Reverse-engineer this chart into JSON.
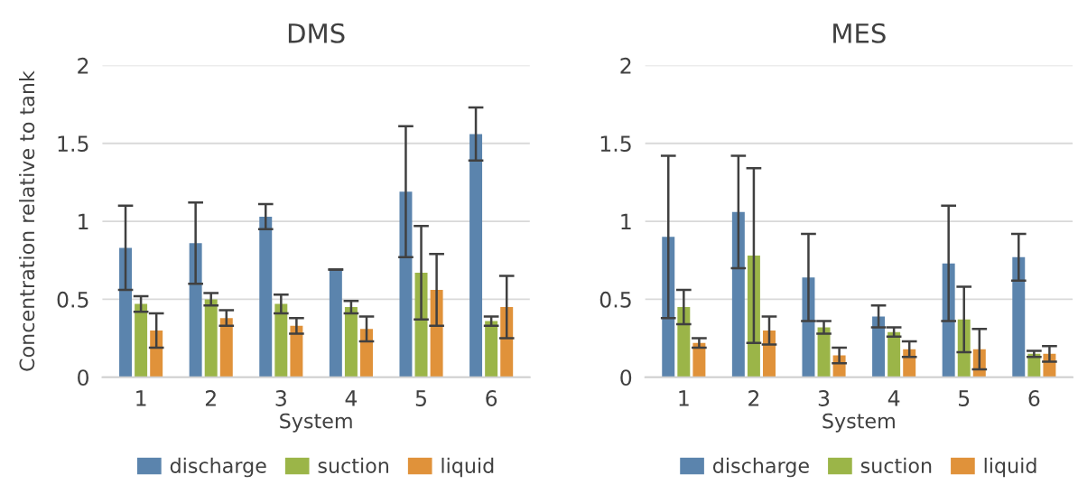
{
  "chart_data": [
    {
      "type": "bar",
      "title": "DMS",
      "xlabel": "System",
      "ylabel": "Concentration relative to tank",
      "categories": [
        "1",
        "2",
        "3",
        "4",
        "5",
        "6"
      ],
      "ylim": [
        0,
        2
      ],
      "yticks": [
        0,
        0.5,
        1,
        1.5,
        2
      ],
      "grid": "y",
      "legend": "bottom",
      "series": [
        {
          "name": "discharge",
          "color": "#5b84ad",
          "values": [
            0.83,
            0.86,
            1.03,
            0.69,
            1.19,
            1.56
          ],
          "errors": [
            0.27,
            0.26,
            0.08,
            0,
            0.42,
            0.17
          ]
        },
        {
          "name": "suction",
          "color": "#9bb548",
          "values": [
            0.47,
            0.5,
            0.47,
            0.45,
            0.67,
            0.36
          ],
          "errors": [
            0.05,
            0.04,
            0.06,
            0.04,
            0.3,
            0.03
          ]
        },
        {
          "name": "liquid",
          "color": "#e0923a",
          "values": [
            0.3,
            0.38,
            0.33,
            0.31,
            0.56,
            0.45
          ],
          "errors": [
            0.11,
            0.05,
            0.05,
            0.08,
            0.23,
            0.2
          ]
        }
      ]
    },
    {
      "type": "bar",
      "title": "MES",
      "xlabel": "System",
      "categories": [
        "1",
        "2",
        "3",
        "4",
        "5",
        "6"
      ],
      "ylim": [
        0,
        2
      ],
      "yticks": [
        0,
        0.5,
        1,
        1.5,
        2
      ],
      "grid": "y",
      "legend": "bottom",
      "series": [
        {
          "name": "discharge",
          "color": "#5b84ad",
          "values": [
            0.9,
            1.06,
            0.64,
            0.39,
            0.73,
            0.77
          ],
          "errors": [
            0.52,
            0.36,
            0.28,
            0.07,
            0.37,
            0.15
          ]
        },
        {
          "name": "suction",
          "color": "#9bb548",
          "values": [
            0.45,
            0.78,
            0.32,
            0.29,
            0.37,
            0.15
          ],
          "errors": [
            0.11,
            0.56,
            0.04,
            0.03,
            0.21,
            0.02
          ]
        },
        {
          "name": "liquid",
          "color": "#e0923a",
          "values": [
            0.22,
            0.3,
            0.14,
            0.18,
            0.18,
            0.15
          ],
          "errors": [
            0.03,
            0.09,
            0.05,
            0.05,
            0.13,
            0.05
          ]
        }
      ]
    }
  ]
}
